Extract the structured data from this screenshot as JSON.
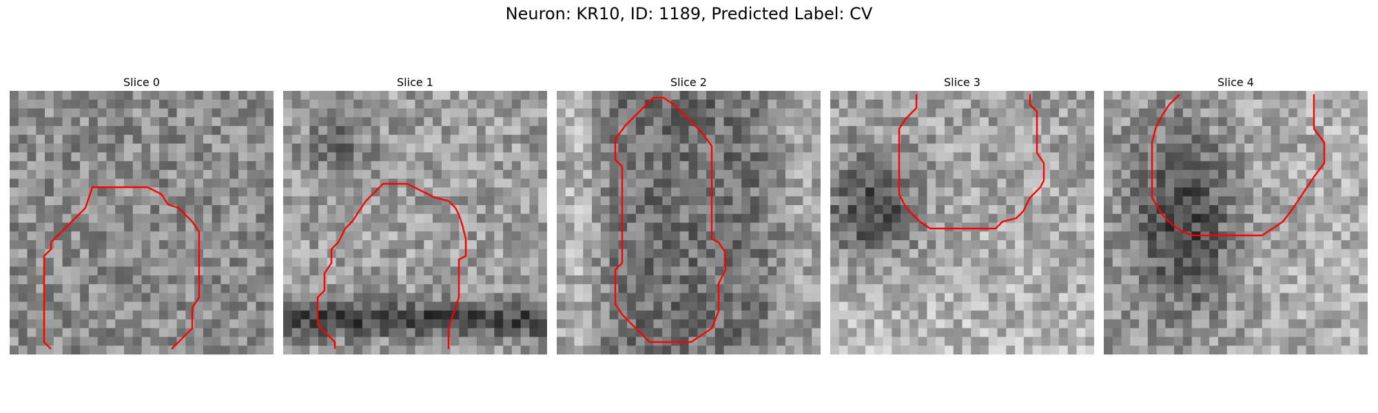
{
  "figure": {
    "title": "Neuron: KR10, ID: 1189, Predicted Label: CV",
    "contour_color": "#ff0000",
    "grid_size": 30
  },
  "slices": [
    {
      "title": "Slice 0"
    },
    {
      "title": "Slice 1"
    },
    {
      "title": "Slice 2"
    },
    {
      "title": "Slice 3"
    },
    {
      "title": "Slice 4"
    }
  ]
}
